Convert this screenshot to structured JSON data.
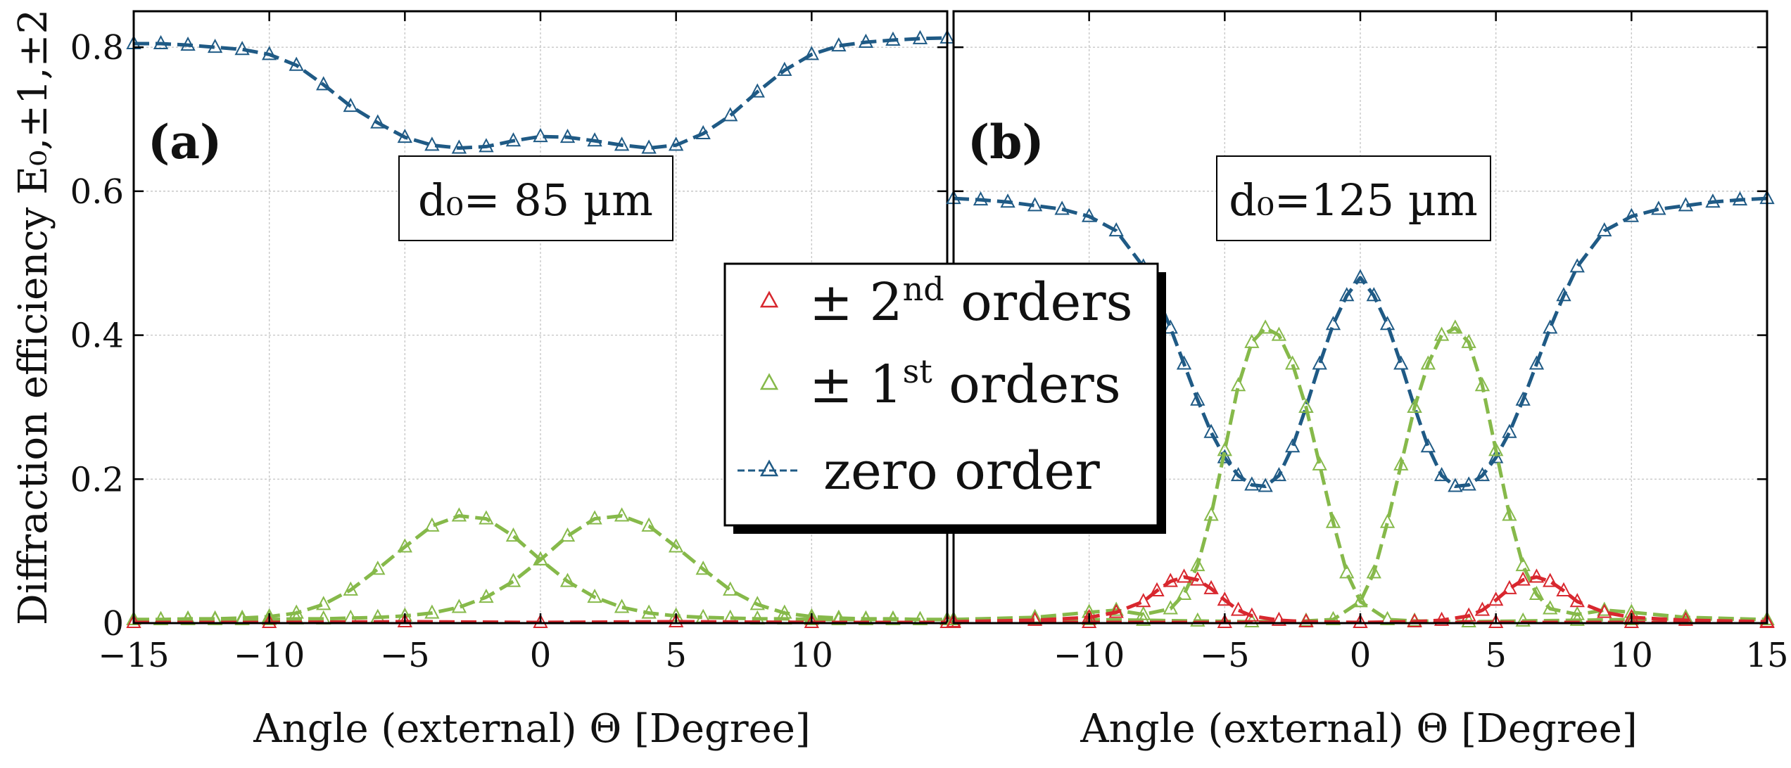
{
  "colors": {
    "zero_order": "#1F5A85",
    "first_order": "#86B94A",
    "second_order": "#D8272E"
  },
  "chart_data": [
    {
      "type": "scatter",
      "panel_label": "(a)",
      "annotation": "d₀= 85 µm",
      "xlabel": "Angle (external) Θ [Degree]",
      "ylabel": "Diffraction efficiency E₀,±1,±2",
      "xlim": [
        -15,
        15
      ],
      "ylim": [
        0,
        0.85
      ],
      "xticks": [
        -15,
        -10,
        -5,
        0,
        5,
        10
      ],
      "xtick_labels": [
        "−15",
        "−10",
        "−5",
        "0",
        "5",
        "10"
      ],
      "yticks": [
        0,
        0.2,
        0.4,
        0.6,
        0.8
      ],
      "ytick_labels": [
        "0",
        "0.2",
        "0.4",
        "0.6",
        "0.8"
      ],
      "grid": true,
      "series": [
        {
          "name": "zero order",
          "color_key": "zero_order",
          "x": [
            -15,
            -14,
            -13,
            -12,
            -11,
            -10,
            -9,
            -8,
            -7,
            -6,
            -5,
            -4,
            -3,
            -2,
            -1,
            0,
            1,
            2,
            3,
            4,
            5,
            6,
            7,
            8,
            9,
            10,
            11,
            12,
            13,
            14,
            15
          ],
          "y": [
            0.805,
            0.805,
            0.803,
            0.8,
            0.797,
            0.79,
            0.775,
            0.748,
            0.718,
            0.695,
            0.675,
            0.664,
            0.66,
            0.662,
            0.67,
            0.676,
            0.675,
            0.67,
            0.664,
            0.66,
            0.664,
            0.68,
            0.705,
            0.738,
            0.768,
            0.79,
            0.802,
            0.807,
            0.81,
            0.812,
            0.813
          ]
        },
        {
          "name": "-1st order",
          "color_key": "first_order",
          "x": [
            -15,
            -14,
            -13,
            -12,
            -11,
            -10,
            -9,
            -8,
            -7,
            -6,
            -5,
            -4,
            -3,
            -2,
            -1,
            0,
            1,
            2,
            3,
            4,
            5,
            6,
            7,
            8,
            9,
            10,
            11,
            12,
            13,
            14,
            15
          ],
          "y": [
            0.005,
            0.005,
            0.006,
            0.006,
            0.007,
            0.009,
            0.014,
            0.026,
            0.046,
            0.075,
            0.106,
            0.135,
            0.149,
            0.145,
            0.121,
            0.088,
            0.058,
            0.036,
            0.022,
            0.014,
            0.01,
            0.008,
            0.007,
            0.006,
            0.006,
            0.005,
            0.005,
            0.005,
            0.005,
            0.005,
            0.005
          ]
        },
        {
          "name": "+1st order",
          "color_key": "first_order",
          "x": [
            -15,
            -14,
            -13,
            -12,
            -11,
            -10,
            -9,
            -8,
            -7,
            -6,
            -5,
            -4,
            -3,
            -2,
            -1,
            0,
            1,
            2,
            3,
            4,
            5,
            6,
            7,
            8,
            9,
            10,
            11,
            12,
            13,
            14,
            15
          ],
          "y": [
            0.005,
            0.005,
            0.005,
            0.005,
            0.005,
            0.005,
            0.006,
            0.006,
            0.007,
            0.008,
            0.01,
            0.014,
            0.022,
            0.036,
            0.058,
            0.088,
            0.121,
            0.145,
            0.149,
            0.135,
            0.106,
            0.075,
            0.046,
            0.026,
            0.014,
            0.009,
            0.007,
            0.006,
            0.006,
            0.005,
            0.005
          ]
        },
        {
          "name": "±2nd orders",
          "color_key": "second_order",
          "x": [
            -15,
            -10,
            -5,
            0,
            5,
            10,
            15
          ],
          "y": [
            0.001,
            0.001,
            0.002,
            0.001,
            0.002,
            0.001,
            0.001
          ]
        }
      ]
    },
    {
      "type": "scatter",
      "panel_label": "(b)",
      "annotation": "d₀=125 µm",
      "xlabel": "Angle (external) Θ [Degree]",
      "xlim": [
        -15,
        15
      ],
      "ylim": [
        0,
        0.85
      ],
      "xticks": [
        -10,
        -5,
        0,
        5,
        10,
        15
      ],
      "xtick_labels": [
        "−10",
        "−5",
        "0",
        "5",
        "10",
        "15"
      ],
      "grid": true,
      "series": [
        {
          "name": "zero order",
          "color_key": "zero_order",
          "x": [
            -15,
            -14,
            -13,
            -12,
            -11,
            -10,
            -9,
            -8,
            -7.5,
            -7,
            -6.5,
            -6,
            -5.5,
            -5,
            -4.5,
            -4,
            -3.5,
            -3,
            -2.5,
            -2,
            -1.5,
            -1,
            -0.5,
            0,
            0.5,
            1,
            1.5,
            2,
            2.5,
            3,
            3.5,
            4,
            4.5,
            5,
            5.5,
            6,
            6.5,
            7,
            7.5,
            8,
            9,
            10,
            11,
            12,
            13,
            14,
            15
          ],
          "y": [
            0.59,
            0.588,
            0.585,
            0.58,
            0.575,
            0.565,
            0.545,
            0.495,
            0.455,
            0.41,
            0.36,
            0.31,
            0.265,
            0.23,
            0.205,
            0.192,
            0.19,
            0.205,
            0.245,
            0.3,
            0.36,
            0.415,
            0.455,
            0.48,
            0.455,
            0.415,
            0.36,
            0.3,
            0.245,
            0.205,
            0.19,
            0.192,
            0.205,
            0.23,
            0.265,
            0.31,
            0.36,
            0.41,
            0.455,
            0.495,
            0.545,
            0.565,
            0.575,
            0.58,
            0.585,
            0.588,
            0.59
          ]
        },
        {
          "name": "-1st order",
          "color_key": "first_order",
          "x": [
            -15,
            -12,
            -10,
            -9,
            -8,
            -7,
            -6.5,
            -6,
            -5.5,
            -5,
            -4.5,
            -4,
            -3.5,
            -3,
            -2.5,
            -2,
            -1.5,
            -1,
            -0.5,
            0,
            1,
            2,
            4,
            6,
            8,
            10,
            12,
            15
          ],
          "y": [
            0.005,
            0.008,
            0.015,
            0.018,
            0.012,
            0.02,
            0.04,
            0.08,
            0.15,
            0.24,
            0.33,
            0.39,
            0.41,
            0.4,
            0.36,
            0.3,
            0.22,
            0.14,
            0.07,
            0.03,
            0.005,
            0.003,
            0.002,
            0.003,
            0.004,
            0.005,
            0.006,
            0.005
          ]
        },
        {
          "name": "+1st order",
          "color_key": "first_order",
          "x": [
            -15,
            -12,
            -10,
            -8,
            -6,
            -4,
            -2,
            -1,
            0,
            0.5,
            1,
            1.5,
            2,
            2.5,
            3,
            3.5,
            4,
            4.5,
            5,
            5.5,
            6,
            6.5,
            7,
            8,
            9,
            10,
            12,
            15
          ],
          "y": [
            0.005,
            0.006,
            0.005,
            0.004,
            0.003,
            0.002,
            0.003,
            0.005,
            0.03,
            0.07,
            0.14,
            0.22,
            0.3,
            0.36,
            0.4,
            0.41,
            0.39,
            0.33,
            0.24,
            0.15,
            0.08,
            0.04,
            0.02,
            0.012,
            0.018,
            0.015,
            0.008,
            0.005
          ]
        },
        {
          "name": "-2nd order",
          "color_key": "second_order",
          "x": [
            -15,
            -12,
            -10,
            -9,
            -8,
            -7.5,
            -7,
            -6.5,
            -6,
            -5.5,
            -5,
            -4.5,
            -4,
            -3,
            -2,
            0,
            5,
            10,
            15
          ],
          "y": [
            0.002,
            0.004,
            0.008,
            0.015,
            0.03,
            0.045,
            0.058,
            0.064,
            0.06,
            0.048,
            0.032,
            0.018,
            0.01,
            0.004,
            0.002,
            0.001,
            0.001,
            0.001,
            0.001
          ]
        },
        {
          "name": "+2nd order",
          "color_key": "second_order",
          "x": [
            -15,
            -10,
            -5,
            0,
            2,
            3,
            4,
            4.5,
            5,
            5.5,
            6,
            6.5,
            7,
            7.5,
            8,
            9,
            10,
            12,
            15
          ],
          "y": [
            0.001,
            0.001,
            0.001,
            0.001,
            0.002,
            0.004,
            0.01,
            0.018,
            0.032,
            0.048,
            0.06,
            0.064,
            0.058,
            0.045,
            0.03,
            0.015,
            0.008,
            0.004,
            0.002
          ]
        }
      ]
    }
  ],
  "legend": {
    "placement": "center",
    "entries": [
      {
        "pm": "± 2",
        "sup": "nd",
        "rest": " orders",
        "color_key": "second_order"
      },
      {
        "pm": "± 1",
        "sup": "st",
        "rest": " orders",
        "color_key": "first_order"
      },
      {
        "pm": "",
        "sup": "",
        "rest": "zero order",
        "color_key": "zero_order"
      }
    ]
  }
}
